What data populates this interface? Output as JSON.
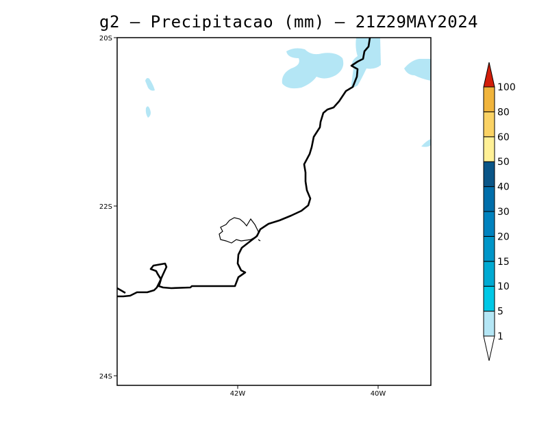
{
  "title": "g2 – Precipitacao (mm) – 21Z29MAY2024",
  "axes": {
    "y_ticks": [
      "20S",
      "22S",
      "24S"
    ],
    "x_ticks": [
      "42W",
      "40W"
    ]
  },
  "colorbar": {
    "levels": [
      "1",
      "5",
      "10",
      "15",
      "20",
      "30",
      "40",
      "50",
      "60",
      "80",
      "100"
    ],
    "colors": [
      "#b4e6f5",
      "#00c8e6",
      "#00aad2",
      "#0096c8",
      "#0082be",
      "#006eaa",
      "#0a5587",
      "#fff096",
      "#fad264",
      "#f0b43c",
      "#e68c14",
      "#d21e0a"
    ],
    "extend": "both"
  },
  "colors": {
    "precip_light": "#b4e6f5",
    "coastline": "#000000",
    "frame": "#000000"
  }
}
